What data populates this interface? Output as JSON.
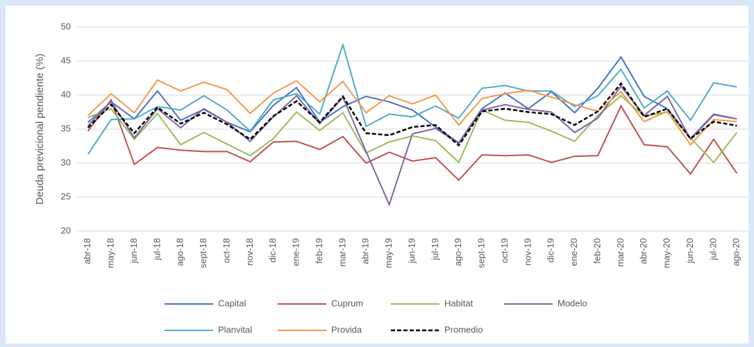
{
  "chart_data": {
    "type": "line",
    "y_label": "Deuda previcional pendiente (%)",
    "categories": [
      "abr-18",
      "may-18",
      "jun-18",
      "jul-18",
      "ago-18",
      "sept-18",
      "oct-18",
      "nov-18",
      "dic-18",
      "ene-19",
      "feb-19",
      "mar-19",
      "abr-19",
      "may-19",
      "jun-19",
      "jul-19",
      "ago-19",
      "sept-19",
      "oct-19",
      "nov-19",
      "dic-19",
      "ene-20",
      "feb-20",
      "mar-20",
      "abr-20",
      "may-20",
      "jun-20",
      "jul-20",
      "ago-20"
    ],
    "series": [
      {
        "name": "Capital",
        "color": "#4472c4",
        "values": [
          36,
          39,
          36.5,
          40.6,
          36.3,
          37.9,
          36,
          34.6,
          38.5,
          41.1,
          36,
          38.3,
          39.8,
          39,
          37.8,
          35.3,
          33,
          38,
          40.3,
          38,
          40.5,
          37.4,
          41,
          45.6,
          39.8,
          38,
          33.6,
          37.2,
          36.5
        ]
      },
      {
        "name": "Cuprum",
        "color": "#c0504d",
        "values": [
          34.7,
          39.3,
          29.8,
          32.3,
          31.9,
          31.7,
          31.7,
          30.2,
          33.1,
          33.2,
          32,
          33.9,
          30,
          31.6,
          30.3,
          30.8,
          27.5,
          31.2,
          31.1,
          31.2,
          30.1,
          31,
          31.1,
          38.4,
          32.7,
          32.4,
          28.4,
          33.5,
          28.5
        ]
      },
      {
        "name": "Habitat",
        "color": "#9bbb59",
        "values": [
          36.7,
          38,
          33.5,
          37.3,
          32.7,
          34.5,
          32.8,
          31.1,
          33.6,
          37.5,
          34.8,
          37.4,
          31.5,
          33.1,
          34,
          33.3,
          30.1,
          37.8,
          36.3,
          36,
          34.7,
          33.2,
          37,
          39.9,
          36.9,
          37.5,
          33.7,
          30.1,
          34.5
        ]
      },
      {
        "name": "Modelo",
        "color": "#8064a2",
        "values": [
          35.5,
          39.1,
          33.7,
          38,
          35.2,
          38,
          36,
          33.2,
          36.8,
          39.9,
          35.8,
          39.7,
          31.7,
          23.9,
          34.3,
          35.1,
          32.9,
          37.8,
          38.6,
          37.9,
          37.5,
          34.5,
          36.6,
          41.3,
          37,
          39.8,
          33.5,
          37.1,
          36.5
        ]
      },
      {
        "name": "Planvital",
        "color": "#4bacc6",
        "values": [
          31.3,
          36.4,
          36.5,
          38.3,
          37.8,
          39.9,
          37.8,
          34.7,
          39.3,
          40.2,
          37.2,
          47.4,
          35.4,
          37.2,
          36.8,
          38.4,
          36.6,
          41,
          41.4,
          40.6,
          40.6,
          38.3,
          39.9,
          43.8,
          38.1,
          40.6,
          36.3,
          41.8,
          41.2
        ]
      },
      {
        "name": "Provida",
        "color": "#f79646",
        "values": [
          37,
          40.2,
          37.4,
          42.2,
          40.6,
          41.9,
          40.8,
          37.3,
          40.3,
          42.1,
          39,
          42,
          37.4,
          39.9,
          38.7,
          40,
          35.6,
          39.5,
          40.2,
          40.7,
          39.7,
          38.6,
          37.6,
          40.5,
          36.1,
          37.6,
          32.7,
          36.4,
          36.1
        ]
      },
      {
        "name": "Promedio",
        "color": "#000000",
        "line_style": "dashed",
        "values": [
          35.2,
          38.6,
          34.4,
          38.2,
          35.8,
          37.4,
          35.7,
          33.5,
          36.9,
          39.1,
          36,
          39.8,
          34.4,
          34.1,
          35.3,
          35.6,
          32.6,
          37.6,
          38,
          37.5,
          37.2,
          35.6,
          37.6,
          41.7,
          36.8,
          38,
          33.6,
          36.1,
          35.5
        ]
      }
    ],
    "ylim": [
      20,
      50
    ],
    "yticks": [
      20,
      25,
      30,
      35,
      40,
      45,
      50
    ],
    "grid": true,
    "legend": "bottom"
  }
}
